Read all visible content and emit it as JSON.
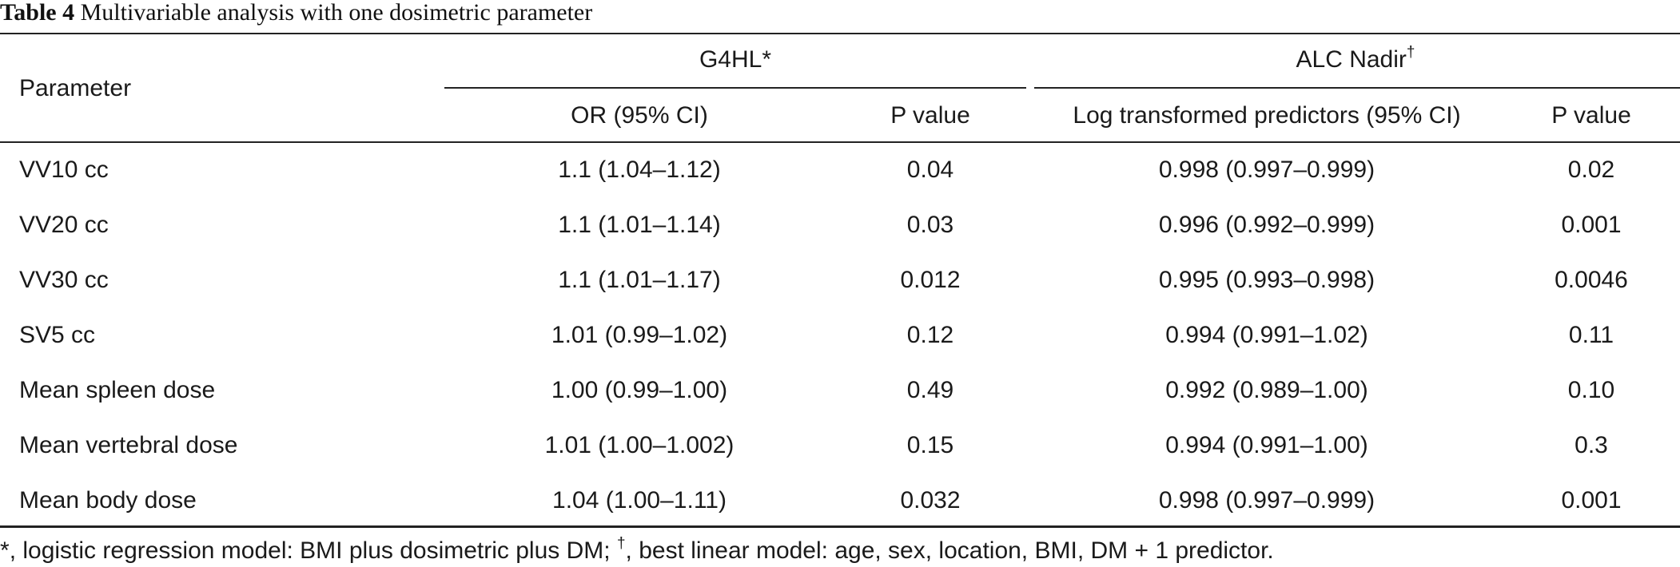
{
  "caption": {
    "label": "Table 4",
    "text": " Multivariable analysis with one dosimetric parameter"
  },
  "header": {
    "parameter": "Parameter",
    "group1": {
      "label": "G4HL",
      "mark": "*"
    },
    "group2": {
      "label": "ALC Nadir",
      "mark": "†"
    },
    "or_ci": "OR (95% CI)",
    "p_value_1": "P value",
    "log_pred": "Log transformed predictors (95% CI)",
    "p_value_2": "P value"
  },
  "rows": [
    {
      "parameter": "VV10 cc",
      "or": "1.1 (1.04–1.12)",
      "p1": "0.04",
      "log": "0.998 (0.997–0.999)",
      "p2": "0.02"
    },
    {
      "parameter": "VV20 cc",
      "or": "1.1 (1.01–1.14)",
      "p1": "0.03",
      "log": "0.996 (0.992–0.999)",
      "p2": "0.001"
    },
    {
      "parameter": "VV30 cc",
      "or": "1.1 (1.01–1.17)",
      "p1": "0.012",
      "log": "0.995 (0.993–0.998)",
      "p2": "0.0046"
    },
    {
      "parameter": "SV5 cc",
      "or": "1.01 (0.99–1.02)",
      "p1": "0.12",
      "log": "0.994 (0.991–1.02)",
      "p2": "0.11"
    },
    {
      "parameter": "Mean spleen dose",
      "or": "1.00 (0.99–1.00)",
      "p1": "0.49",
      "log": "0.992 (0.989–1.00)",
      "p2": "0.10"
    },
    {
      "parameter": "Mean vertebral dose",
      "or": "1.01 (1.00–1.002)",
      "p1": "0.15",
      "log": "0.994 (0.991–1.00)",
      "p2": "0.3"
    },
    {
      "parameter": "Mean body dose",
      "or": "1.04 (1.00–1.11)",
      "p1": "0.032",
      "log": "0.998 (0.997–0.999)",
      "p2": "0.001"
    }
  ],
  "footnote": {
    "mark1": "*",
    "text1": ", logistic regression model: BMI plus dosimetric plus DM; ",
    "mark2": "†",
    "text2": ", best linear model: age, sex, location, BMI, DM + 1 predictor."
  }
}
